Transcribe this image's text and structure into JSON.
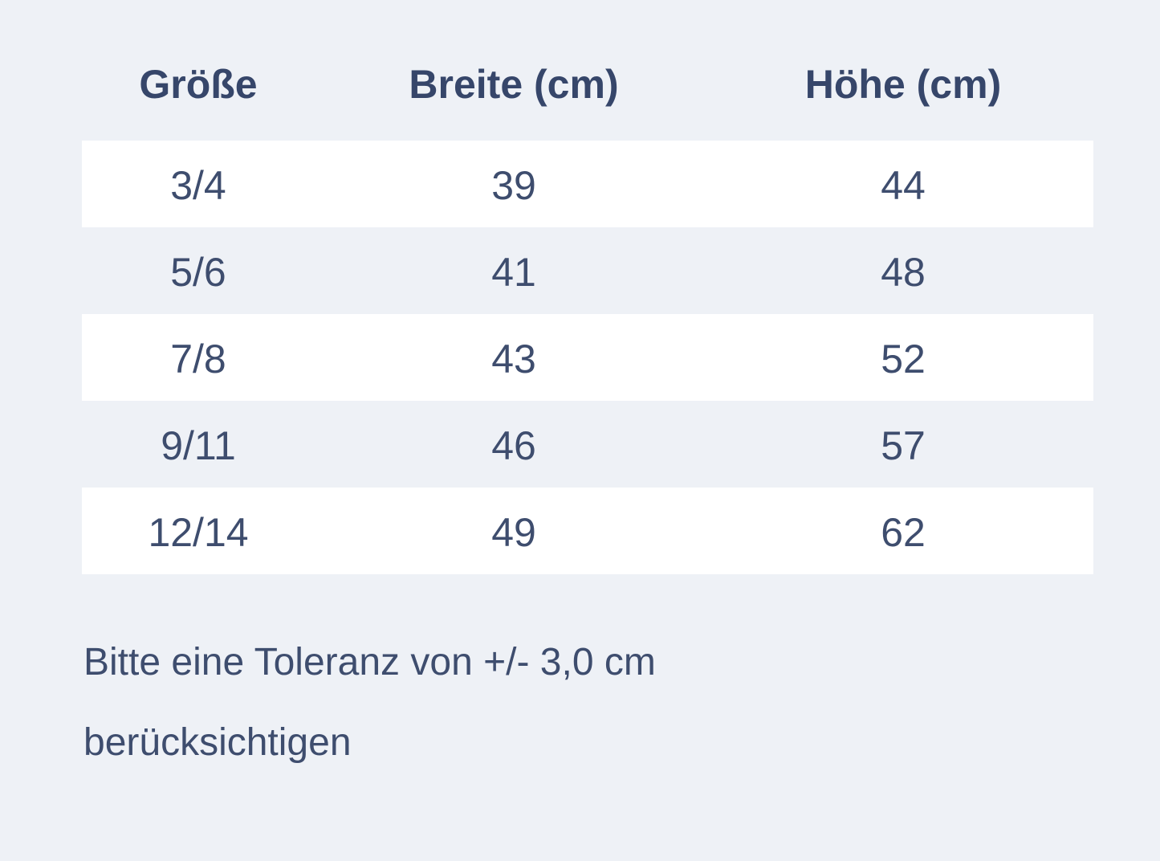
{
  "theme": {
    "page_background": "#eef1f6",
    "row_highlight_background": "#ffffff",
    "text_color": "#3e4d6e",
    "header_text_color": "#36466a"
  },
  "size_chart": {
    "columns": {
      "size": "Größe",
      "width": "Breite (cm)",
      "height": "Höhe (cm)"
    },
    "rows": [
      {
        "size": "3/4",
        "width_cm": "39",
        "height_cm": "44"
      },
      {
        "size": "5/6",
        "width_cm": "41",
        "height_cm": "48"
      },
      {
        "size": "7/8",
        "width_cm": "43",
        "height_cm": "52"
      },
      {
        "size": "9/11",
        "width_cm": "46",
        "height_cm": "57"
      },
      {
        "size": "12/14",
        "width_cm": "49",
        "height_cm": "62"
      }
    ],
    "note": {
      "full_text": "Bitte eine Toleranz von +/- 3,0 cm berücksichtigen",
      "line1": "Bitte eine Toleranz von +/- 3,0 cm",
      "line2": "berücksichtigen"
    }
  }
}
